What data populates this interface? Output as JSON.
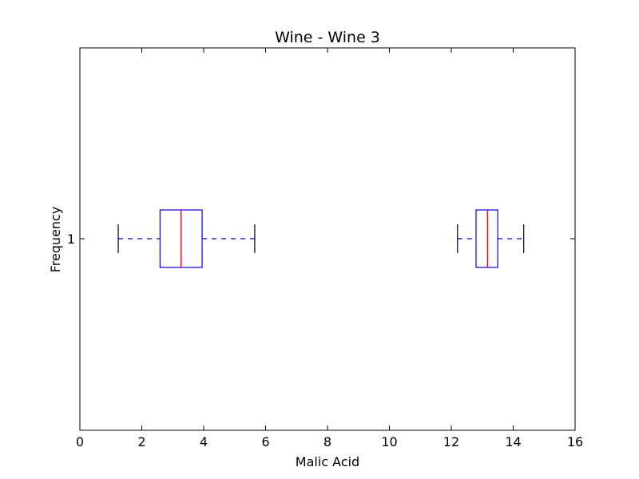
{
  "chart_data": {
    "type": "boxplot",
    "orientation": "horizontal",
    "title": "Wine - Wine 3",
    "xlabel": "Malic Acid",
    "ylabel": "Frequency",
    "xlim": [
      0,
      16
    ],
    "xticks": [
      "0",
      "2",
      "4",
      "6",
      "8",
      "10",
      "12",
      "14",
      "16"
    ],
    "yticks": [
      "1"
    ],
    "grid": false,
    "boxes": [
      {
        "position": 1,
        "whisker_low": 1.24,
        "q1": 2.59,
        "median": 3.27,
        "q3": 3.95,
        "whisker_high": 5.65
      },
      {
        "position": 1,
        "whisker_low": 12.2,
        "q1": 12.8,
        "median": 13.17,
        "q3": 13.5,
        "whisker_high": 14.34
      }
    ],
    "colors": {
      "box": "#0000ff",
      "whisker": "#0000ff",
      "median": "#ff0000",
      "cap": "#000000",
      "axes": "#000000"
    }
  }
}
